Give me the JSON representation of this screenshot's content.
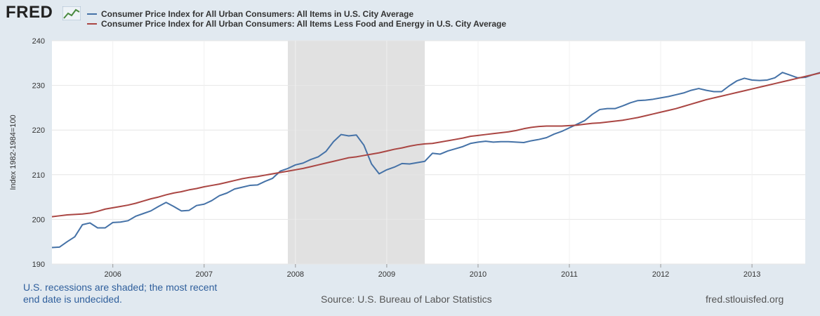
{
  "header": {
    "logo_text": "FRED",
    "logo_icon": "line-chart-icon"
  },
  "colors": {
    "series1": "#4572a7",
    "series2": "#aa4643",
    "recession": "#e1e1e1",
    "grid": "#e6e6e6",
    "background": "#e1e9f0",
    "plot_bg": "#ffffff"
  },
  "footer": {
    "recession_note_line1": "U.S. recessions are shaded; the most recent",
    "recession_note_line2": "end date is undecided.",
    "source": "Source: U.S. Bureau of Labor Statistics",
    "site": "fred.stlouisfed.org"
  },
  "chart_data": {
    "type": "line",
    "ylabel": "Index 1982-1984=100",
    "ylim": [
      190,
      240
    ],
    "yticks": [
      190,
      200,
      210,
      220,
      230,
      240
    ],
    "xlim": [
      "2005-05",
      "2013-08"
    ],
    "xtick_labels": [
      "2006",
      "2007",
      "2008",
      "2009",
      "2010",
      "2011",
      "2012",
      "2013"
    ],
    "grid": true,
    "legend_position": "top",
    "recession": {
      "start": "2007-12",
      "end": "2009-06"
    },
    "x_start": "2005-05",
    "x_step": "month",
    "series": [
      {
        "name": "Consumer Price Index for All Urban Consumers: All Items in U.S. City Average",
        "color": "#4572a7",
        "values": [
          193.7,
          193.8,
          195.0,
          196.1,
          198.8,
          199.2,
          198.1,
          198.1,
          199.3,
          199.4,
          199.7,
          200.7,
          201.3,
          201.9,
          202.9,
          203.8,
          202.9,
          201.9,
          202.0,
          203.1,
          203.4,
          204.2,
          205.3,
          205.9,
          206.8,
          207.2,
          207.6,
          207.7,
          208.5,
          209.2,
          210.8,
          211.4,
          212.2,
          212.6,
          213.4,
          214.0,
          215.2,
          217.4,
          219.0,
          218.7,
          218.9,
          216.6,
          212.4,
          210.2,
          211.1,
          211.7,
          212.5,
          212.4,
          212.7,
          213.0,
          214.8,
          214.6,
          215.3,
          215.8,
          216.3,
          217.0,
          217.3,
          217.5,
          217.3,
          217.4,
          217.4,
          217.3,
          217.2,
          217.6,
          217.9,
          218.3,
          219.1,
          219.7,
          220.5,
          221.3,
          222.1,
          223.5,
          224.6,
          224.8,
          224.8,
          225.4,
          226.1,
          226.6,
          226.7,
          226.9,
          227.2,
          227.5,
          227.9,
          228.3,
          228.9,
          229.3,
          228.9,
          228.6,
          228.6,
          229.9,
          231.0,
          231.6,
          231.2,
          231.1,
          231.2,
          231.7,
          232.9,
          232.3,
          231.7,
          231.8,
          232.4,
          232.9,
          233.4,
          233.6,
          233.8
        ]
      },
      {
        "name": "Consumer Price Index for All Urban Consumers: All Items Less Food and Energy in U.S. City Average",
        "color": "#aa4643",
        "values": [
          200.6,
          200.8,
          201.0,
          201.1,
          201.2,
          201.4,
          201.8,
          202.3,
          202.6,
          202.9,
          203.2,
          203.6,
          204.1,
          204.6,
          205.0,
          205.5,
          205.9,
          206.2,
          206.6,
          206.9,
          207.3,
          207.6,
          207.9,
          208.3,
          208.7,
          209.1,
          209.4,
          209.6,
          209.9,
          210.2,
          210.5,
          210.8,
          211.1,
          211.4,
          211.8,
          212.2,
          212.6,
          213.0,
          213.4,
          213.8,
          214.0,
          214.3,
          214.6,
          214.9,
          215.3,
          215.7,
          216.0,
          216.4,
          216.7,
          216.9,
          217.0,
          217.3,
          217.6,
          217.9,
          218.2,
          218.6,
          218.8,
          219.0,
          219.2,
          219.4,
          219.6,
          219.9,
          220.3,
          220.6,
          220.8,
          220.9,
          220.9,
          220.9,
          221.0,
          221.1,
          221.3,
          221.5,
          221.6,
          221.8,
          222.0,
          222.2,
          222.5,
          222.8,
          223.2,
          223.6,
          224.0,
          224.4,
          224.8,
          225.3,
          225.8,
          226.3,
          226.8,
          227.2,
          227.6,
          228.0,
          228.4,
          228.8,
          229.2,
          229.6,
          230.0,
          230.4,
          230.8,
          231.2,
          231.6,
          232.0,
          232.4,
          232.8,
          233.2,
          233.6,
          234.1,
          234.7
        ]
      }
    ]
  }
}
